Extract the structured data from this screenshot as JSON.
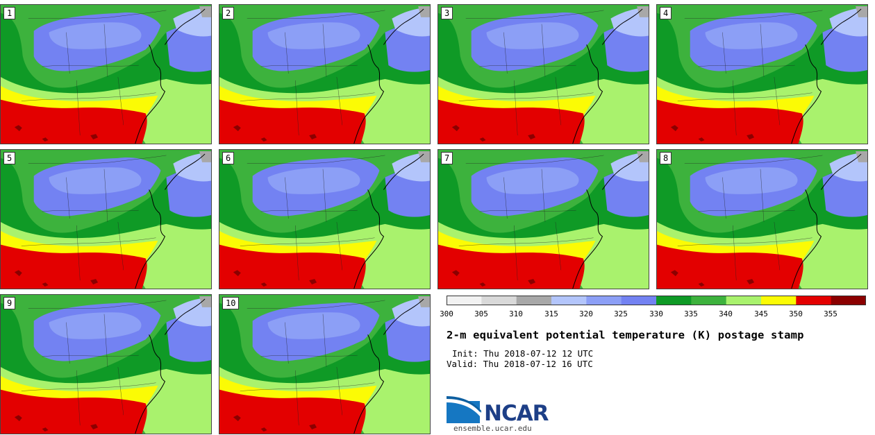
{
  "members": [
    "1",
    "2",
    "3",
    "4",
    "5",
    "6",
    "7",
    "8",
    "9",
    "10"
  ],
  "colorbar": {
    "ticks": [
      "300",
      "305",
      "310",
      "315",
      "320",
      "325",
      "330",
      "335",
      "340",
      "345",
      "350",
      "355"
    ],
    "colors": [
      "#f2f2f2",
      "#d9d9d9",
      "#a8a8a8",
      "#b3c5fb",
      "#8c9ff6",
      "#7382f2",
      "#0f9a26",
      "#3db23d",
      "#a9f26d",
      "#fbfb05",
      "#e30000",
      "#8b0000"
    ]
  },
  "title": "2-m equivalent potential temperature (K) postage stamp",
  "init": "Init: Thu 2018-07-12 12 UTC",
  "valid": "Valid: Thu 2018-07-12 16 UTC",
  "logo": {
    "text": "NCAR",
    "url_text": "ensemble.ucar.edu"
  }
}
